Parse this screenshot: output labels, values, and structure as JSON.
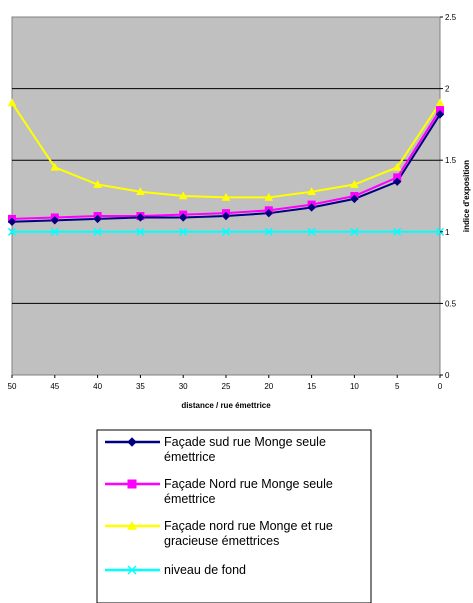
{
  "chart_data": {
    "type": "line",
    "x": [
      50,
      45,
      40,
      35,
      30,
      25,
      20,
      15,
      10,
      5,
      0
    ],
    "xlabel": "distance / rue émettrice",
    "ylabel": "indice d'exposition",
    "xticks": [
      "50",
      "45",
      "40",
      "35",
      "30",
      "25",
      "20",
      "15",
      "10",
      "5",
      "0"
    ],
    "yticks": [
      "0",
      "0.5",
      "1",
      "1.5",
      "2",
      "2.5"
    ],
    "ylim": [
      0,
      2.5
    ],
    "y_axis_side": "right",
    "x_reversed": true,
    "grid": "horizontal",
    "plot_background": "#c0c0c0",
    "legend_position": "bottom",
    "series": [
      {
        "name": "Façade sud rue Monge seule émettrice",
        "legend_lines": [
          "Façade sud rue Monge seule",
          "émettrice"
        ],
        "color": "#000080",
        "marker": "diamond",
        "values": [
          1.07,
          1.08,
          1.09,
          1.1,
          1.1,
          1.11,
          1.13,
          1.17,
          1.23,
          1.35,
          1.82
        ]
      },
      {
        "name": "Façade Nord rue Monge seule émettrice",
        "legend_lines": [
          "Façade Nord rue Monge seule",
          "émettrice"
        ],
        "color": "#ff00ff",
        "marker": "square",
        "values": [
          1.09,
          1.1,
          1.11,
          1.11,
          1.12,
          1.13,
          1.15,
          1.19,
          1.25,
          1.38,
          1.85
        ]
      },
      {
        "name": "Façade nord rue Monge et rue gracieuse émettrices",
        "legend_lines": [
          "Façade nord rue Monge et rue",
          "gracieuse émettrices"
        ],
        "color": "#ffff00",
        "marker": "triangle",
        "values": [
          1.9,
          1.45,
          1.33,
          1.28,
          1.25,
          1.24,
          1.24,
          1.28,
          1.33,
          1.45,
          1.9
        ]
      },
      {
        "name": "niveau de fond",
        "legend_lines": [
          "niveau de fond"
        ],
        "color": "#00ffff",
        "marker": "x",
        "values": [
          1.0,
          1.0,
          1.0,
          1.0,
          1.0,
          1.0,
          1.0,
          1.0,
          1.0,
          1.0,
          1.0
        ]
      }
    ]
  }
}
